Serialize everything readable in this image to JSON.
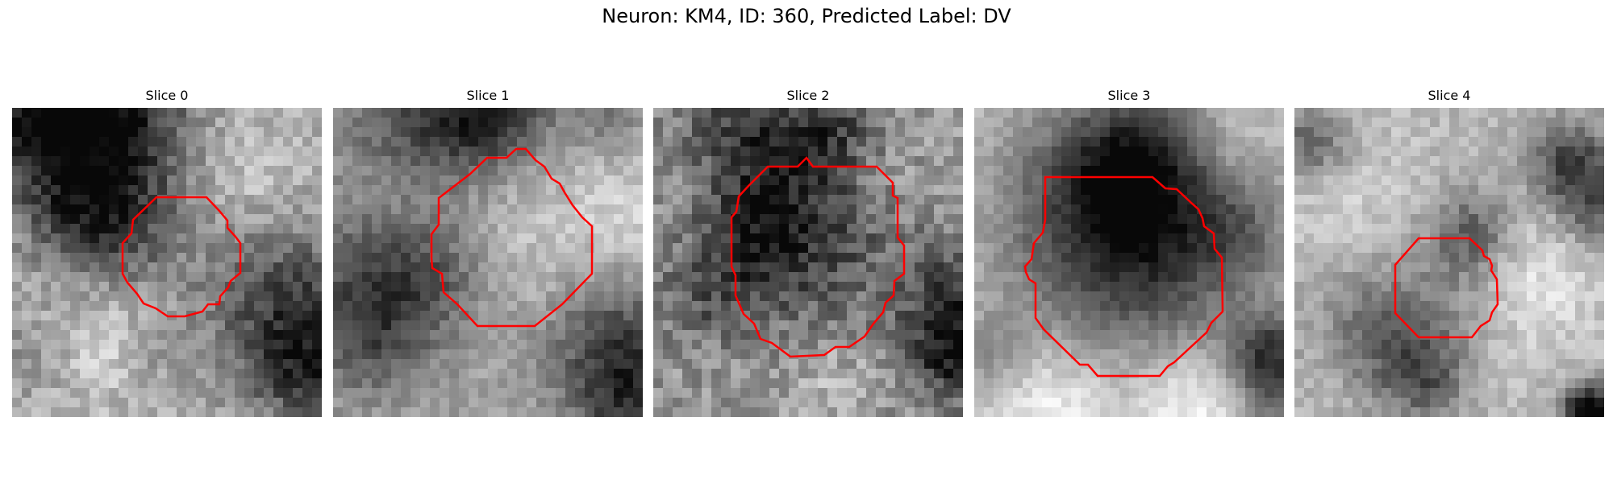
{
  "figure": {
    "title": "Neuron: KM4, ID: 360, Predicted Label: DV"
  },
  "panels": [
    {
      "title": "Slice 0"
    },
    {
      "title": "Slice 1"
    },
    {
      "title": "Slice 2"
    },
    {
      "title": "Slice 3"
    },
    {
      "title": "Slice 4"
    }
  ],
  "colors": {
    "contour": "#ff0000",
    "background": "#ffffff"
  }
}
